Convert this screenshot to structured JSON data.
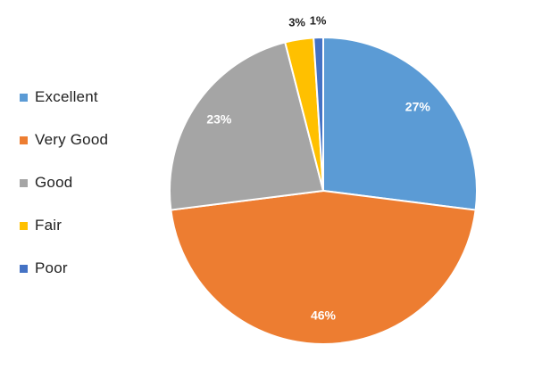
{
  "chart_data": {
    "type": "pie",
    "categories": [
      "Excellent",
      "Very Good",
      "Good",
      "Fair",
      "Poor"
    ],
    "values": [
      27,
      46,
      23,
      3,
      1
    ],
    "data_labels": [
      "27%",
      "46%",
      "23%",
      "3%",
      "1%"
    ],
    "colors": [
      "#5B9BD5",
      "#ED7D31",
      "#A5A5A5",
      "#FFC000",
      "#4472C4"
    ],
    "label_colors": [
      "#ffffff",
      "#ffffff",
      "#ffffff",
      "#222222",
      "#222222"
    ],
    "legend": "left",
    "start_angle": "12 o'clock",
    "direction": "clockwise"
  }
}
